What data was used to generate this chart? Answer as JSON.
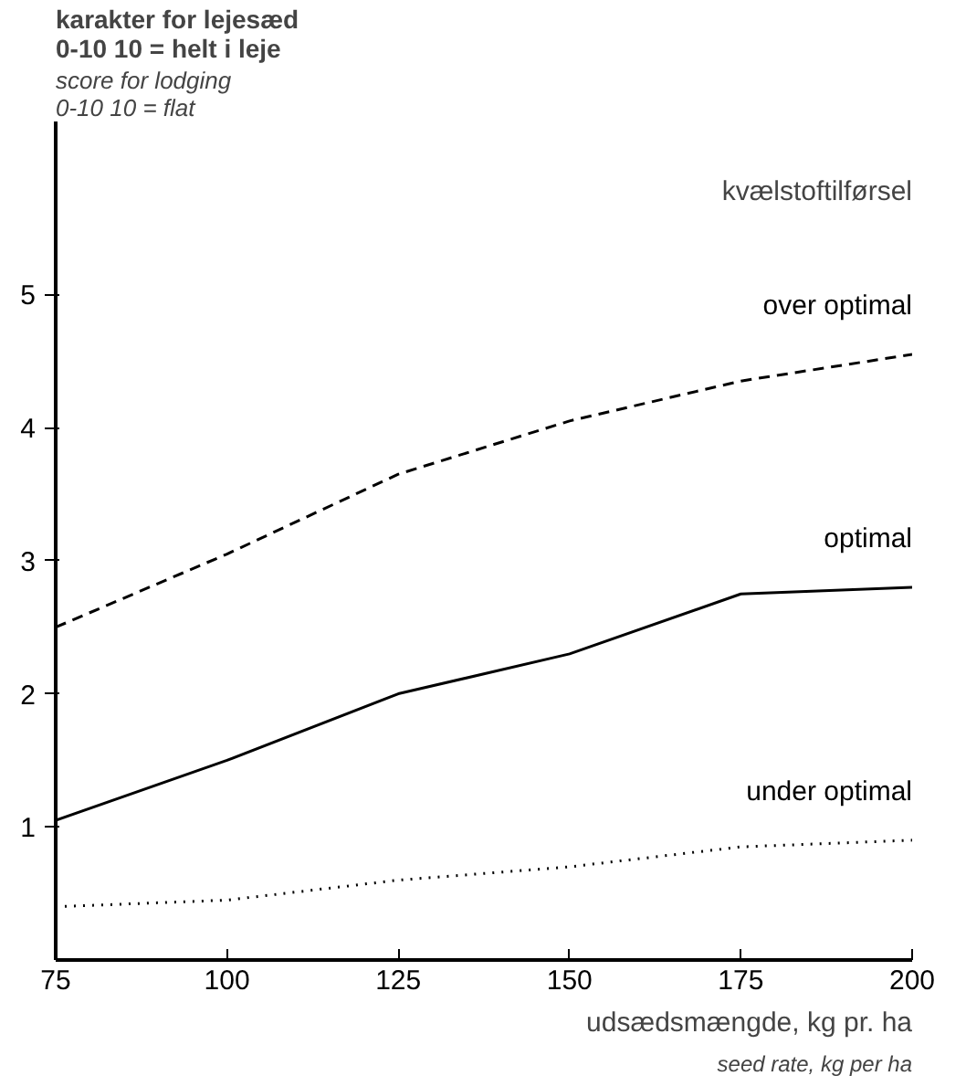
{
  "chart_data": {
    "type": "line",
    "title": "karakter for lejesæd\n0-10   10 = helt i leje",
    "subtitle": "score for lodging\n0-10   10 = flat",
    "xlabel": "udsædsmængde, kg pr. ha",
    "annotations": [
      "seed rate, kg per ha"
    ],
    "legend_title": "kvælstoftilførsel",
    "x": [
      75,
      100,
      125,
      150,
      175,
      200
    ],
    "xlim": [
      75,
      200
    ],
    "xticks": [
      75,
      100,
      125,
      150,
      175,
      200
    ],
    "ylim": [
      0,
      6.3
    ],
    "yticks": [
      1,
      2,
      3,
      4,
      5
    ],
    "grid": false,
    "series": [
      {
        "name": "over optimal",
        "color": "#000000",
        "line_style": "dashed",
        "values": [
          2.5,
          3.05,
          3.65,
          4.05,
          4.35,
          4.55
        ]
      },
      {
        "name": "optimal",
        "color": "#000000",
        "line_style": "solid",
        "values": [
          1.05,
          1.5,
          2.0,
          2.3,
          2.75,
          2.8
        ]
      },
      {
        "name": "under optimal",
        "color": "#000000",
        "line_style": "dotted",
        "values": [
          0.4,
          0.45,
          0.6,
          0.7,
          0.85,
          0.9
        ]
      }
    ]
  }
}
